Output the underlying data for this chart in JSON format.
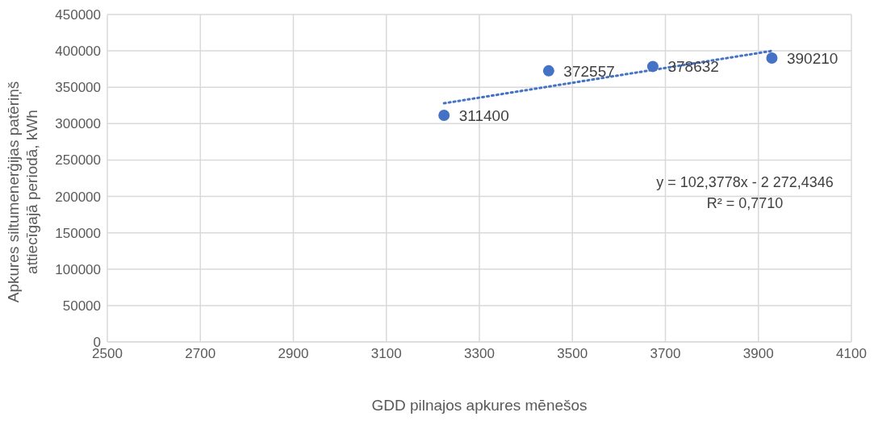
{
  "chart_data": {
    "type": "scatter",
    "xlabel": "GDD pilnajos apkures mēnešos",
    "ylabel": "Apkures siltumenerģijas patēriņš attiecīgajā periodā, kWh",
    "series": [
      {
        "color": "#4472c4",
        "x": [
          3224,
          3449,
          3673,
          3929
        ],
        "values": [
          311400,
          372557,
          378632,
          390210
        ],
        "value_labels": [
          "311400",
          "372557",
          "378632",
          "390210"
        ],
        "marker": "circle"
      },
      {
        "type": "line",
        "color": "#4472c4",
        "x": [
          3224,
          3929
        ],
        "values": [
          328000,
          400000
        ],
        "line_style": "dotted",
        "marker": "none"
      }
    ],
    "annotations": [
      "y = 102,3778x - 2 272,4346",
      "R² = 0,7710"
    ],
    "xlim": [
      2500,
      4100
    ],
    "xticks": [
      2500,
      2700,
      2900,
      3100,
      3300,
      3500,
      3700,
      3900,
      4100
    ],
    "ylim": [
      0,
      450000
    ],
    "yticks": [
      0,
      50000,
      100000,
      150000,
      200000,
      250000,
      300000,
      350000,
      400000,
      450000
    ],
    "grid": true,
    "legend": false
  }
}
